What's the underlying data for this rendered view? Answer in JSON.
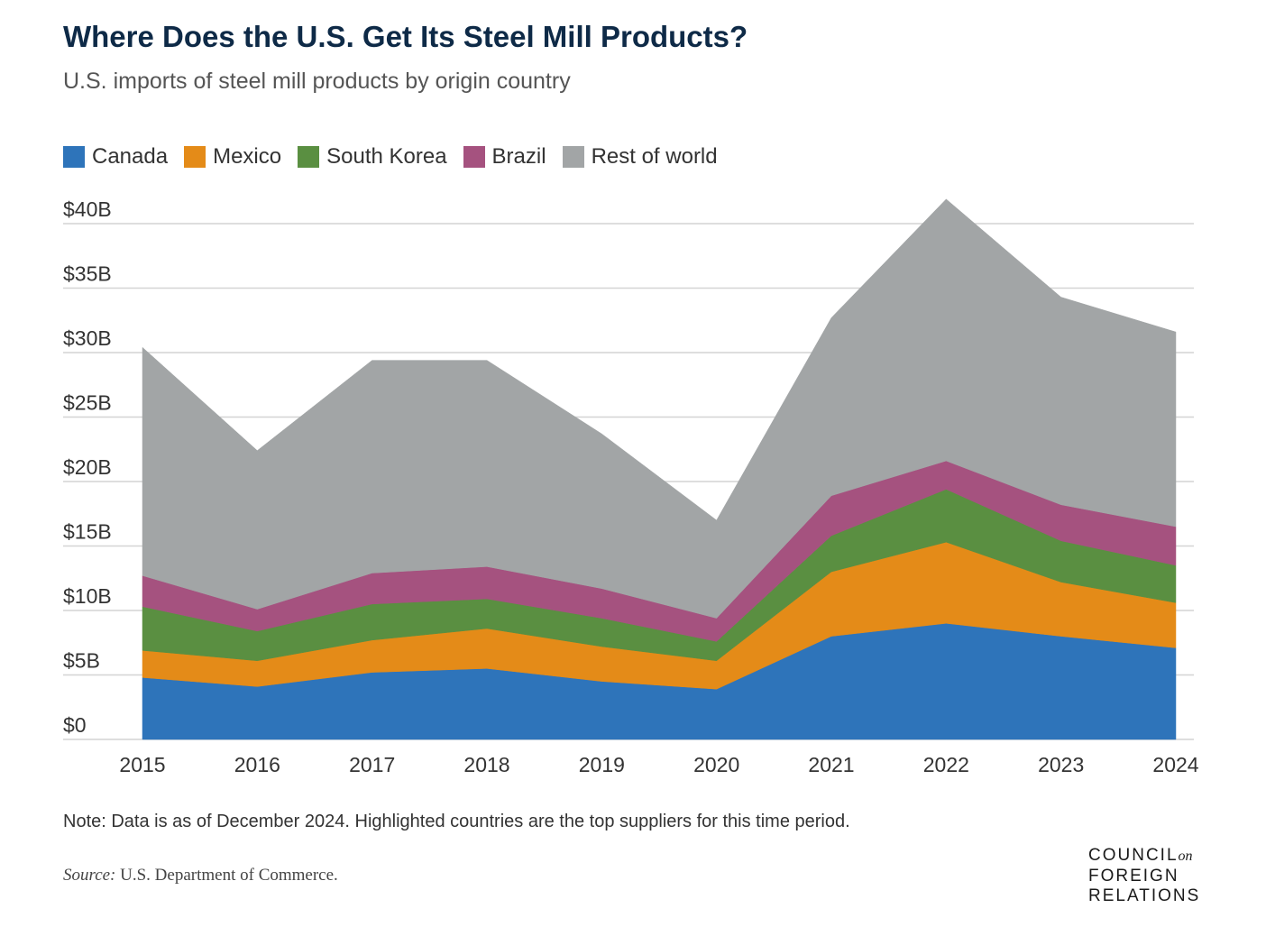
{
  "header": {
    "title": "Where Does the U.S. Get Its Steel Mill Products?",
    "subtitle": "U.S. imports of steel mill products by origin country"
  },
  "colors": {
    "canada": "#2e74ba",
    "mexico": "#e48b18",
    "south_korea": "#5a8f41",
    "brazil": "#a5527f",
    "rest_of_world": "#a2a5a6",
    "grid": "#d4d4d4",
    "axis_text": "#333333",
    "title": "#0e2a47"
  },
  "chart_data": {
    "type": "area",
    "stacked": true,
    "x": [
      "2015",
      "2016",
      "2017",
      "2018",
      "2019",
      "2020",
      "2021",
      "2022",
      "2023",
      "2024"
    ],
    "series": [
      {
        "name": "Canada",
        "values": [
          4.8,
          4.1,
          5.2,
          5.5,
          4.5,
          3.9,
          8.0,
          9.0,
          8.0,
          7.1
        ]
      },
      {
        "name": "Mexico",
        "values": [
          2.1,
          2.0,
          2.5,
          3.1,
          2.7,
          2.2,
          5.0,
          6.3,
          4.2,
          3.5
        ]
      },
      {
        "name": "South Korea",
        "values": [
          3.4,
          2.3,
          2.8,
          2.3,
          2.2,
          1.5,
          2.8,
          4.1,
          3.2,
          2.9
        ]
      },
      {
        "name": "Brazil",
        "values": [
          2.4,
          1.7,
          2.4,
          2.5,
          2.3,
          1.8,
          3.1,
          2.2,
          2.8,
          3.0
        ]
      },
      {
        "name": "Rest of world",
        "values": [
          17.7,
          12.3,
          16.5,
          16.0,
          12.0,
          7.6,
          13.8,
          20.3,
          16.1,
          15.1
        ]
      }
    ],
    "y_ticks": [
      0,
      5,
      10,
      15,
      20,
      25,
      30,
      35,
      40
    ],
    "y_tick_labels": [
      "$0",
      "$5B",
      "$10B",
      "$15B",
      "$20B",
      "$25B",
      "$30B",
      "$35B",
      "$40B"
    ],
    "ylim": [
      0,
      40
    ],
    "grid": true,
    "legend_position": "top-left"
  },
  "footer": {
    "note": "Note: Data is as of December 2024. Highlighted countries are the top suppliers for this time period.",
    "source_label": "Source:",
    "source_text": "U.S. Department of Commerce.",
    "logo_line1": "COUNCIL",
    "logo_on": "on",
    "logo_line2": "FOREIGN",
    "logo_line3": "RELATIONS"
  }
}
